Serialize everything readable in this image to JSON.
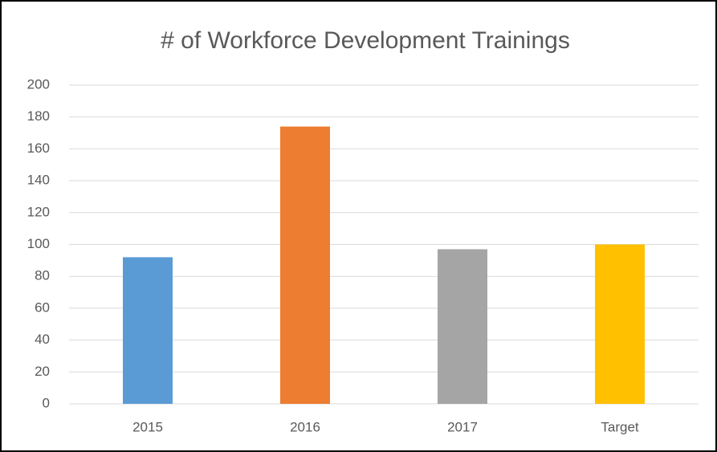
{
  "chart_data": {
    "type": "bar",
    "title": "# of Workforce Development Trainings",
    "categories": [
      "2015",
      "2016",
      "2017",
      "Target"
    ],
    "values": [
      92,
      174,
      97,
      100
    ],
    "colors": [
      "#5b9bd5",
      "#ed7d31",
      "#a5a5a5",
      "#ffc000"
    ],
    "ylim": [
      0,
      200
    ],
    "yticks": [
      0,
      20,
      40,
      60,
      80,
      100,
      120,
      140,
      160,
      180,
      200
    ],
    "grid": true
  }
}
